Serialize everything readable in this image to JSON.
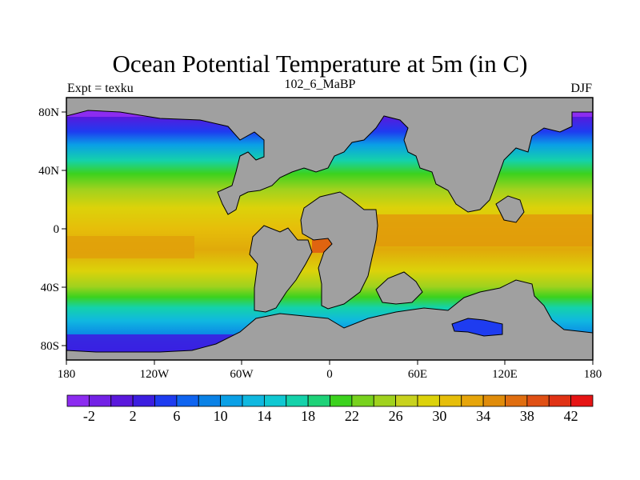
{
  "title": "Ocean Potential Temperature at 5m (in C)",
  "subtitle_left": "Expt = texku",
  "subtitle_center": "102_6_MaBP",
  "subtitle_right": "DJF",
  "map": {
    "lon_labels": [
      "180",
      "120W",
      "60W",
      "0",
      "60E",
      "120E",
      "180"
    ],
    "lat_labels": [
      "80N",
      "40N",
      "0",
      "40S",
      "80S"
    ],
    "land_color": "#a0a0a0"
  },
  "colorbar": {
    "labels": [
      "-2",
      "2",
      "6",
      "10",
      "14",
      "18",
      "22",
      "26",
      "30",
      "34",
      "38",
      "42"
    ],
    "colors": [
      "#8c2cf0",
      "#7322e6",
      "#5a18dc",
      "#3c1ee0",
      "#1e3cf0",
      "#0f64f0",
      "#0a82e6",
      "#0aa0e6",
      "#10b8e0",
      "#10c8d2",
      "#14d2aa",
      "#1ed278",
      "#3cd21e",
      "#78d21e",
      "#a0d21e",
      "#c8d21e",
      "#dcd20a",
      "#e6be0a",
      "#e6a50a",
      "#e08c0a",
      "#e06e10",
      "#e05014",
      "#e03214",
      "#e61414"
    ]
  }
}
